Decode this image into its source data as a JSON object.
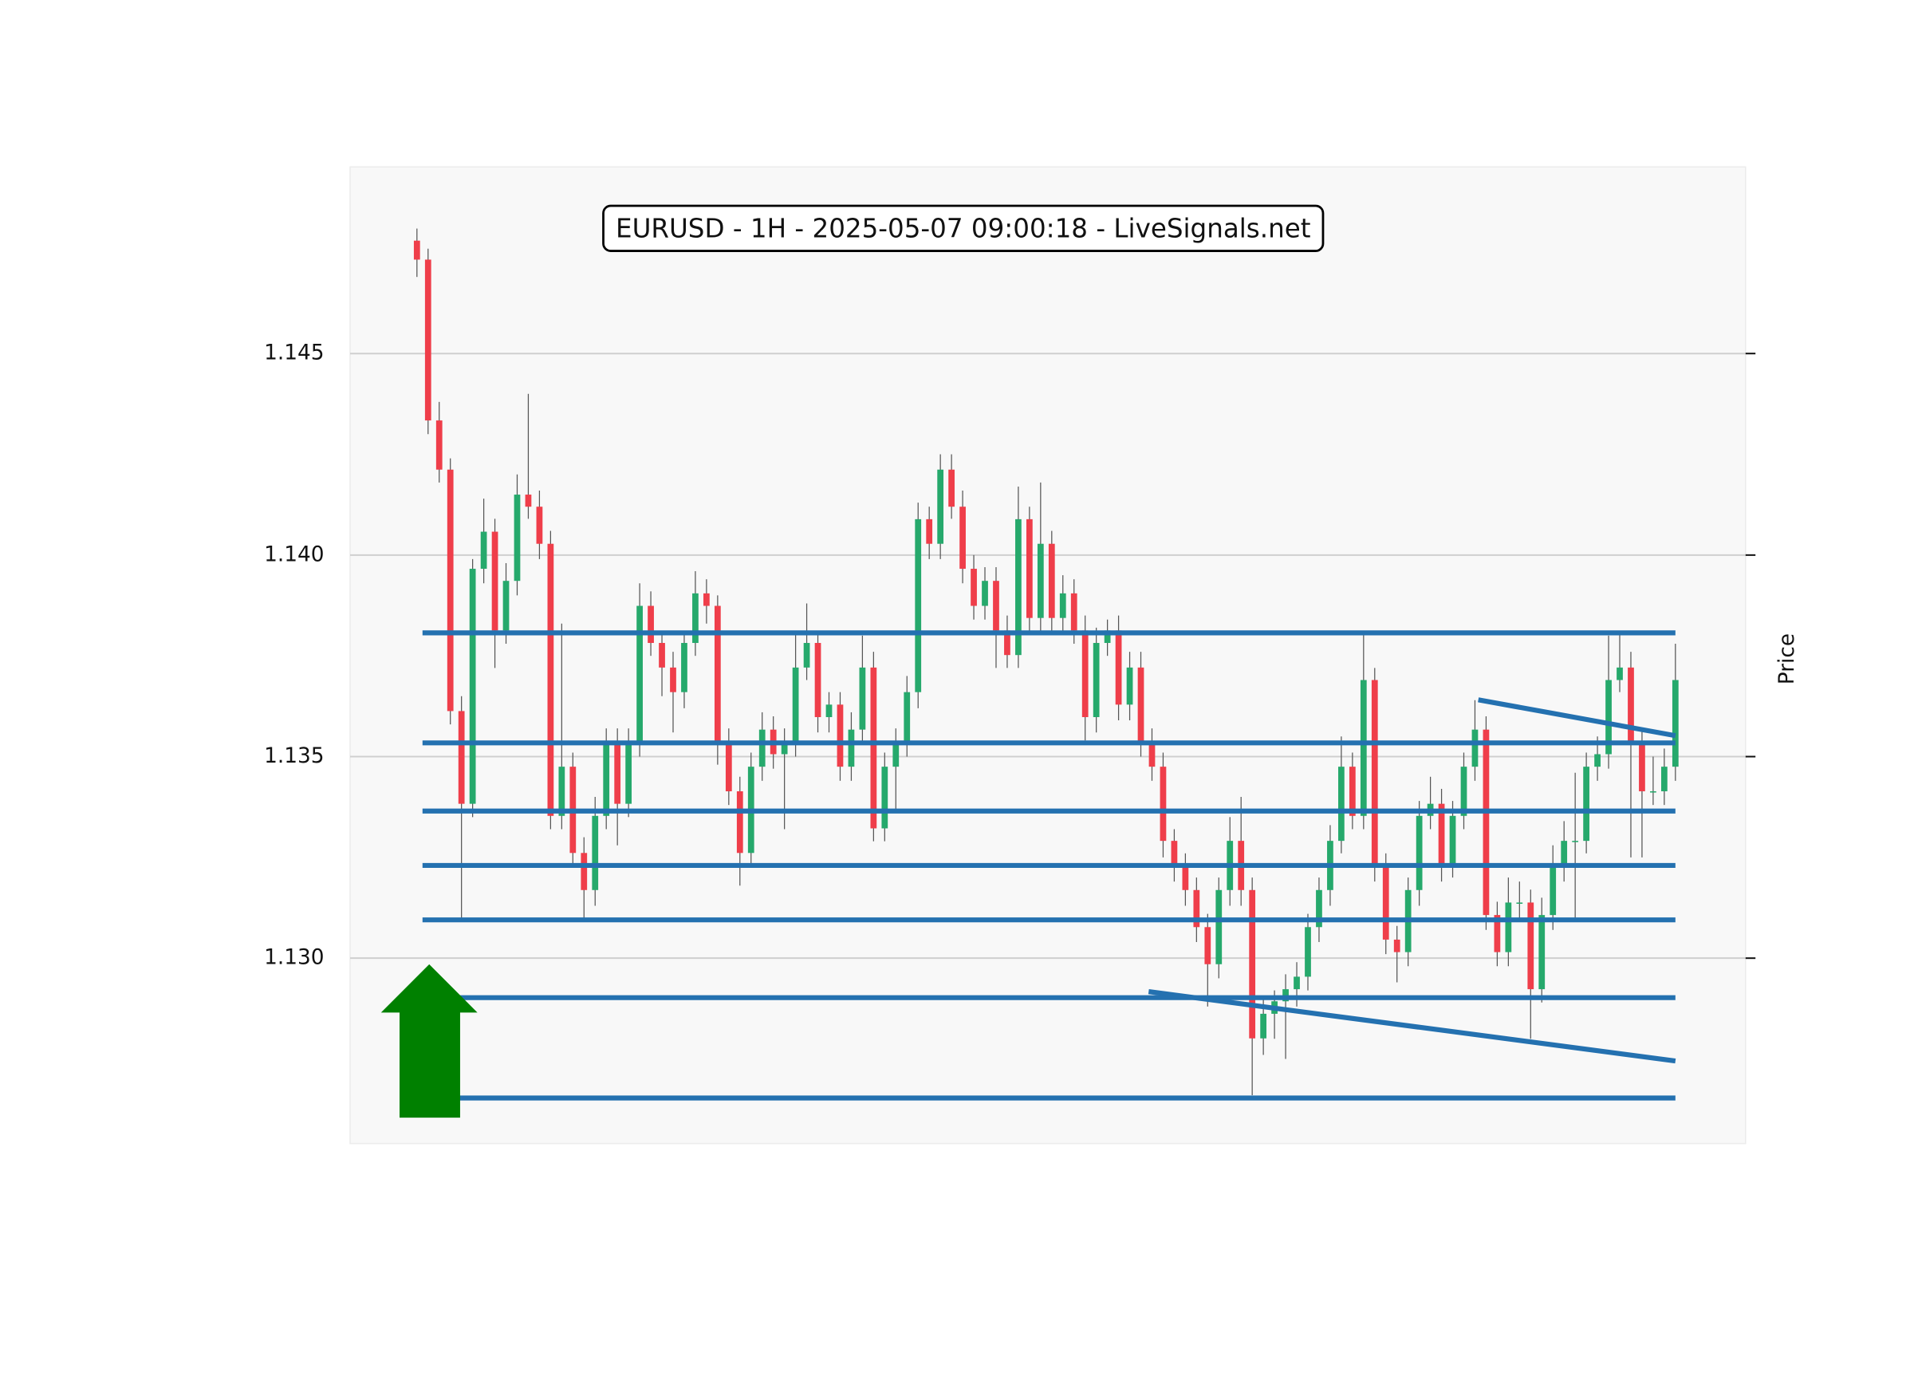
{
  "chart_data": {
    "type": "candlestick",
    "title": "EURUSD - 1H - 2025-05-07 09:00:18 - LiveSignals.net",
    "ylabel": "Price",
    "xlim": [
      -6,
      119.3
    ],
    "ylim": [
      1.1254,
      1.14963
    ],
    "yticks": [
      {
        "value": 1.13,
        "label": "1.130"
      },
      1.135,
      {
        "value": 1.14,
        "label": "1.140"
      },
      1.145
    ],
    "grid": true,
    "up_color": "#26a96c",
    "down_color": "#ef3e4a",
    "wick_color": "#555555",
    "level_color": "#2471b0",
    "ohlc": [
      [
        1.1478,
        1.1481,
        1.1469,
        1.14733
      ],
      [
        1.14733,
        1.1476,
        1.143,
        1.14334
      ],
      [
        1.14334,
        1.1438,
        1.1418,
        1.14212
      ],
      [
        1.14212,
        1.1424,
        1.1358,
        1.13613
      ],
      [
        1.13613,
        1.1365,
        1.1309,
        1.13383
      ],
      [
        1.13383,
        1.1399,
        1.1335,
        1.13966
      ],
      [
        1.13966,
        1.1414,
        1.1393,
        1.14058
      ],
      [
        1.14058,
        1.1409,
        1.1372,
        1.13813
      ],
      [
        1.13813,
        1.1398,
        1.1378,
        1.13936
      ],
      [
        1.13936,
        1.142,
        1.139,
        1.1415
      ],
      [
        1.1415,
        1.144,
        1.1409,
        1.1412
      ],
      [
        1.1412,
        1.1416,
        1.1399,
        1.14028
      ],
      [
        1.14028,
        1.1406,
        1.1332,
        1.13353
      ],
      [
        1.13353,
        1.1383,
        1.1332,
        1.13475
      ],
      [
        1.13475,
        1.1351,
        1.1323,
        1.13261
      ],
      [
        1.13261,
        1.133,
        1.131,
        1.13169
      ],
      [
        1.13169,
        1.134,
        1.1313,
        1.13353
      ],
      [
        1.13353,
        1.1357,
        1.1332,
        1.13537
      ],
      [
        1.13537,
        1.1357,
        1.1328,
        1.13383
      ],
      [
        1.13383,
        1.1357,
        1.1335,
        1.13537
      ],
      [
        1.13537,
        1.1393,
        1.135,
        1.13874
      ],
      [
        1.13874,
        1.1391,
        1.1375,
        1.13782
      ],
      [
        1.13782,
        1.1381,
        1.1365,
        1.13721
      ],
      [
        1.13721,
        1.1376,
        1.1356,
        1.1366
      ],
      [
        1.1366,
        1.1381,
        1.1362,
        1.13782
      ],
      [
        1.13782,
        1.1396,
        1.1375,
        1.13905
      ],
      [
        1.13905,
        1.1394,
        1.1383,
        1.13874
      ],
      [
        1.13874,
        1.139,
        1.1348,
        1.13537
      ],
      [
        1.13537,
        1.1357,
        1.1338,
        1.13414
      ],
      [
        1.13414,
        1.1345,
        1.1318,
        1.13261
      ],
      [
        1.13261,
        1.1351,
        1.1323,
        1.13475
      ],
      [
        1.13475,
        1.1361,
        1.1344,
        1.13567
      ],
      [
        1.13567,
        1.136,
        1.1347,
        1.13506
      ],
      [
        1.13506,
        1.1357,
        1.1332,
        1.13537
      ],
      [
        1.13537,
        1.1381,
        1.135,
        1.13721
      ],
      [
        1.13721,
        1.1388,
        1.1369,
        1.13782
      ],
      [
        1.13782,
        1.1381,
        1.1356,
        1.13598
      ],
      [
        1.13598,
        1.1366,
        1.1356,
        1.13629
      ],
      [
        1.13629,
        1.1366,
        1.1344,
        1.13475
      ],
      [
        1.13475,
        1.1361,
        1.1344,
        1.13567
      ],
      [
        1.13567,
        1.138,
        1.1353,
        1.13721
      ],
      [
        1.13721,
        1.1376,
        1.1329,
        1.13322
      ],
      [
        1.13322,
        1.1351,
        1.1329,
        1.13475
      ],
      [
        1.13475,
        1.1357,
        1.1336,
        1.13537
      ],
      [
        1.13537,
        1.137,
        1.135,
        1.1366
      ],
      [
        1.1366,
        1.1413,
        1.1362,
        1.14089
      ],
      [
        1.14089,
        1.1412,
        1.1399,
        1.14028
      ],
      [
        1.14028,
        1.1425,
        1.1399,
        1.14212
      ],
      [
        1.14212,
        1.1425,
        1.1409,
        1.1412
      ],
      [
        1.1412,
        1.1416,
        1.1393,
        1.13966
      ],
      [
        1.13966,
        1.14,
        1.1384,
        1.13874
      ],
      [
        1.13874,
        1.1397,
        1.1384,
        1.13936
      ],
      [
        1.13936,
        1.1397,
        1.1372,
        1.13813
      ],
      [
        1.13813,
        1.1385,
        1.1372,
        1.13752
      ],
      [
        1.13752,
        1.1417,
        1.1372,
        1.14089
      ],
      [
        1.14089,
        1.1412,
        1.1381,
        1.13844
      ],
      [
        1.13844,
        1.1418,
        1.1381,
        1.14028
      ],
      [
        1.14028,
        1.1406,
        1.1381,
        1.13844
      ],
      [
        1.13844,
        1.1395,
        1.1381,
        1.13905
      ],
      [
        1.13905,
        1.1394,
        1.1378,
        1.13813
      ],
      [
        1.13813,
        1.1385,
        1.1354,
        1.13598
      ],
      [
        1.13598,
        1.1382,
        1.1356,
        1.13782
      ],
      [
        1.13782,
        1.1384,
        1.1375,
        1.13813
      ],
      [
        1.13813,
        1.1385,
        1.1359,
        1.13629
      ],
      [
        1.13629,
        1.1376,
        1.1359,
        1.13721
      ],
      [
        1.13721,
        1.1376,
        1.135,
        1.13537
      ],
      [
        1.13537,
        1.1357,
        1.1344,
        1.13475
      ],
      [
        1.13475,
        1.1351,
        1.1325,
        1.13291
      ],
      [
        1.13291,
        1.1332,
        1.1319,
        1.1323
      ],
      [
        1.1323,
        1.1326,
        1.1313,
        1.13169
      ],
      [
        1.13169,
        1.132,
        1.1304,
        1.13077
      ],
      [
        1.13077,
        1.1311,
        1.1288,
        1.12985
      ],
      [
        1.12985,
        1.132,
        1.1295,
        1.13169
      ],
      [
        1.13169,
        1.1335,
        1.1313,
        1.13291
      ],
      [
        1.13291,
        1.134,
        1.1313,
        1.13169
      ],
      [
        1.13169,
        1.132,
        1.1266,
        1.12801
      ],
      [
        1.12801,
        1.129,
        1.1276,
        1.12862
      ],
      [
        1.12862,
        1.1292,
        1.128,
        1.12893
      ],
      [
        1.12893,
        1.1296,
        1.1275,
        1.12923
      ],
      [
        1.12923,
        1.1299,
        1.1288,
        1.12954
      ],
      [
        1.12954,
        1.1311,
        1.1292,
        1.13077
      ],
      [
        1.13077,
        1.132,
        1.1304,
        1.13169
      ],
      [
        1.13169,
        1.1333,
        1.1313,
        1.13291
      ],
      [
        1.13291,
        1.1355,
        1.1326,
        1.13475
      ],
      [
        1.13475,
        1.1351,
        1.1332,
        1.13353
      ],
      [
        1.13353,
        1.1381,
        1.1332,
        1.1369
      ],
      [
        1.1369,
        1.1372,
        1.1319,
        1.1323
      ],
      [
        1.1323,
        1.1326,
        1.1301,
        1.13046
      ],
      [
        1.13046,
        1.1308,
        1.1294,
        1.13015
      ],
      [
        1.13015,
        1.132,
        1.1298,
        1.13169
      ],
      [
        1.13169,
        1.1339,
        1.1313,
        1.13353
      ],
      [
        1.13353,
        1.1345,
        1.1332,
        1.13383
      ],
      [
        1.13383,
        1.1342,
        1.1319,
        1.1323
      ],
      [
        1.1323,
        1.1339,
        1.132,
        1.13353
      ],
      [
        1.13353,
        1.1351,
        1.1332,
        1.13475
      ],
      [
        1.13475,
        1.1364,
        1.1344,
        1.13567
      ],
      [
        1.13567,
        1.136,
        1.1307,
        1.13107
      ],
      [
        1.13107,
        1.1314,
        1.1298,
        1.13015
      ],
      [
        1.13015,
        1.132,
        1.1298,
        1.13138
      ],
      [
        1.13138,
        1.1319,
        1.131,
        1.13138
      ],
      [
        1.13138,
        1.1317,
        1.128,
        1.12923
      ],
      [
        1.12923,
        1.1315,
        1.1289,
        1.13107
      ],
      [
        1.13107,
        1.1328,
        1.1307,
        1.1323
      ],
      [
        1.1323,
        1.1334,
        1.1319,
        1.13291
      ],
      [
        1.13291,
        1.1346,
        1.1309,
        1.13291
      ],
      [
        1.13291,
        1.1351,
        1.1326,
        1.13475
      ],
      [
        1.13475,
        1.1355,
        1.1344,
        1.13506
      ],
      [
        1.13506,
        1.138,
        1.1347,
        1.1369
      ],
      [
        1.1369,
        1.1381,
        1.1366,
        1.13721
      ],
      [
        1.13721,
        1.1376,
        1.1325,
        1.13537
      ],
      [
        1.13537,
        1.1357,
        1.1325,
        1.13414
      ],
      [
        1.13414,
        1.135,
        1.1338,
        1.13414
      ],
      [
        1.13414,
        1.1352,
        1.1338,
        1.13475
      ],
      [
        1.13475,
        1.1378,
        1.1344,
        1.1369
      ]
    ],
    "levels": [
      1.13807,
      1.13534,
      1.13365,
      1.1323,
      1.13095,
      1.12902,
      1.12653
    ],
    "trendlines": [
      {
        "x": [
          65.7,
          113
        ],
        "y": [
          1.12917,
          1.12745
        ]
      },
      {
        "x": [
          95.3,
          113
        ],
        "y": [
          1.13641,
          1.13552
        ]
      }
    ]
  }
}
